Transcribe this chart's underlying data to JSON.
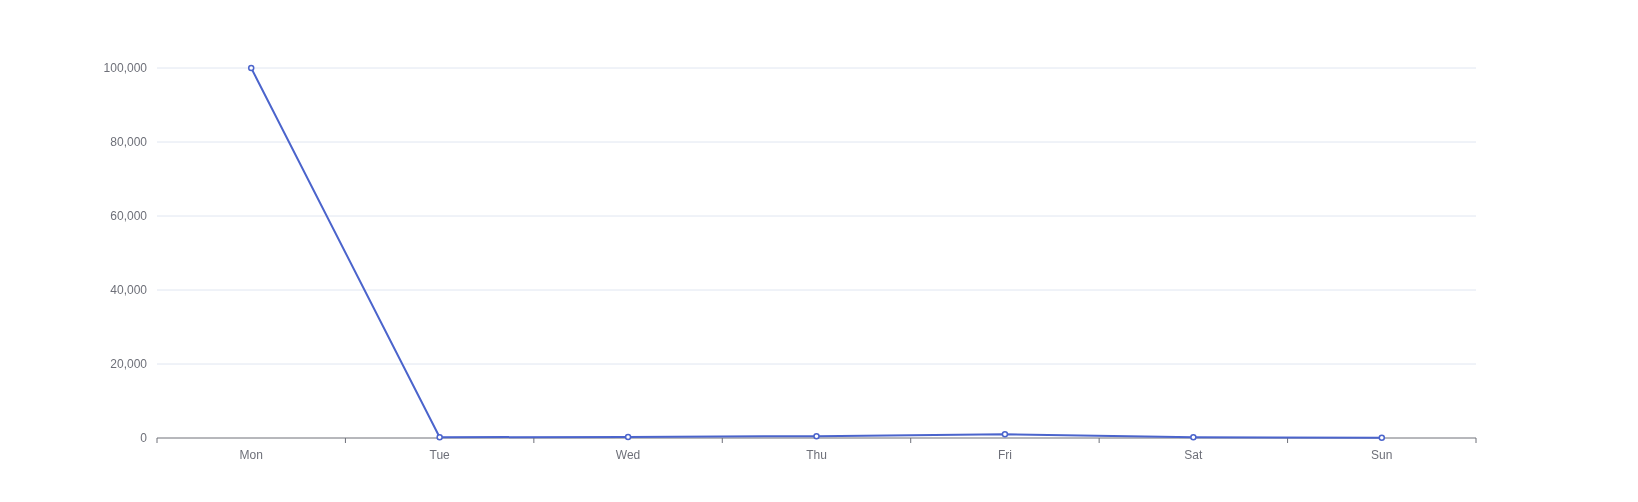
{
  "chart_data": {
    "type": "line",
    "categories": [
      "Mon",
      "Tue",
      "Wed",
      "Thu",
      "Fri",
      "Sat",
      "Sun"
    ],
    "series": [
      {
        "color": "#4b64cc",
        "values": [
          100000,
          200,
          300,
          500,
          1000,
          200,
          100
        ]
      }
    ],
    "ylim": [
      0,
      100000
    ],
    "yticks": [
      0,
      {
        "value": 20000,
        "label": "20,000"
      },
      {
        "value": 40000,
        "label": "40,000"
      },
      {
        "value": 60000,
        "label": "60,000"
      },
      {
        "value": 80000,
        "label": "80,000"
      },
      {
        "value": 100000,
        "label": "100,000"
      }
    ],
    "grid": "y",
    "marker": "circle",
    "line_style": "solid"
  }
}
